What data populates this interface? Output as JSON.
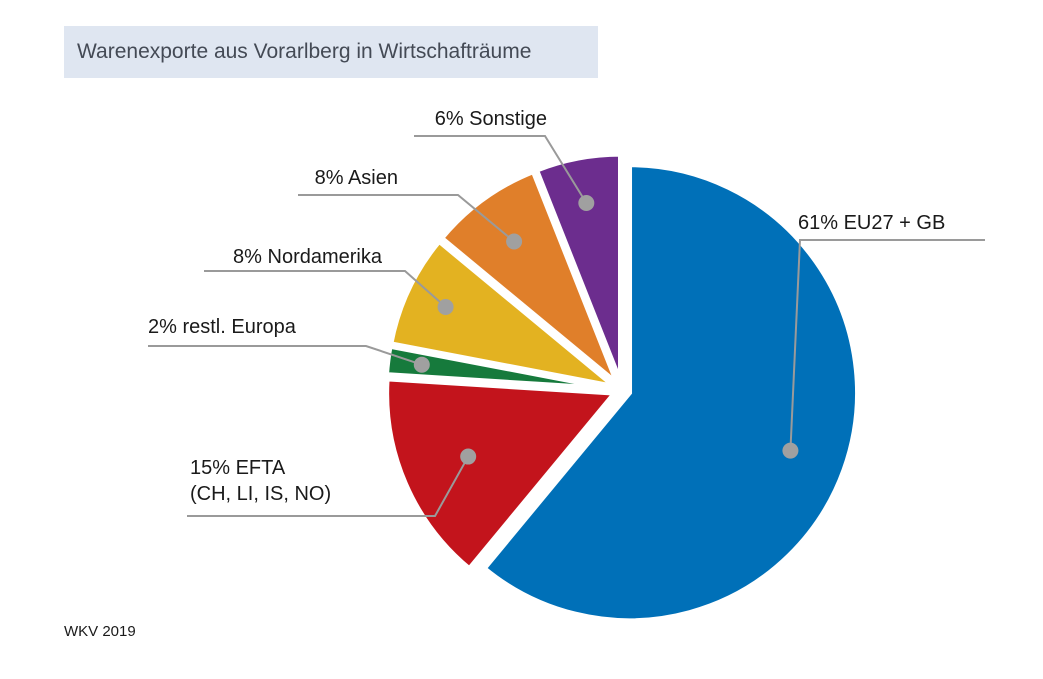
{
  "title": "Warenexporte aus Vorarlberg in Wirtschafträume",
  "source": "WKV 2019",
  "chart_data": {
    "type": "pie",
    "title": "Warenexporte aus Vorarlberg in Wirtschafträume",
    "unit": "%",
    "slices": [
      {
        "label": "EU27 + GB",
        "value": 61,
        "color": "#0070b8",
        "label_lines": [
          "61% EU27 + GB"
        ]
      },
      {
        "label": "EFTA (CH, LI, IS, NO)",
        "value": 15,
        "color": "#c3141c",
        "label_lines": [
          "15% EFTA",
          "(CH, LI, IS, NO)"
        ]
      },
      {
        "label": "restl. Europa",
        "value": 2,
        "color": "#167a3c",
        "label_lines": [
          "2% restl. Europa"
        ]
      },
      {
        "label": "Nordamerika",
        "value": 8,
        "color": "#e3b221",
        "label_lines": [
          "8% Nordamerika"
        ]
      },
      {
        "label": "Asien",
        "value": 8,
        "color": "#e07f2a",
        "label_lines": [
          "8% Asien"
        ]
      },
      {
        "label": "Sonstige",
        "value": 6,
        "color": "#6c2d8e",
        "label_lines": [
          "6% Sonstige"
        ]
      }
    ],
    "legend": "none",
    "labels": "outside with leader lines"
  }
}
